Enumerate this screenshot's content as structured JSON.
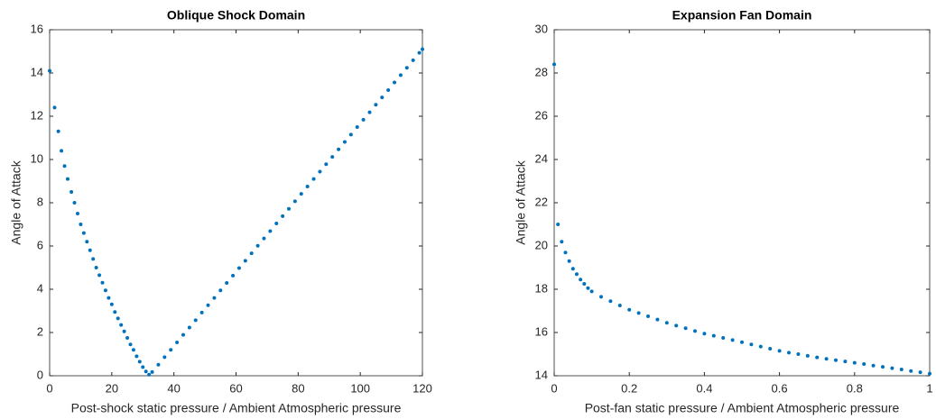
{
  "chart_data": [
    {
      "type": "scatter",
      "title": "Oblique Shock Domain",
      "xlabel": "Post-shock static pressure / Ambient Atmospheric pressure",
      "ylabel": "Angle of Attack",
      "color": "#0072bd",
      "x": [
        0,
        1.6,
        2.8,
        3.8,
        4.8,
        5.8,
        7,
        8,
        9,
        10,
        11,
        12,
        13,
        14,
        15,
        16,
        17,
        18,
        19,
        20,
        21,
        22,
        23,
        24,
        25,
        26,
        27,
        28,
        29,
        30,
        31,
        32,
        33,
        35,
        37,
        39,
        41,
        43,
        45,
        47,
        49,
        51,
        53,
        55,
        57,
        59,
        61,
        63,
        65,
        67,
        69,
        71,
        73,
        75,
        77,
        79,
        81,
        83,
        85,
        87,
        89,
        91,
        93,
        95,
        97,
        99,
        101,
        103,
        105,
        107,
        109,
        111,
        113,
        115,
        117,
        119,
        120
      ],
      "values": [
        14.1,
        12.4,
        11.3,
        10.4,
        9.7,
        9.1,
        8.5,
        8.0,
        7.5,
        7.0,
        6.6,
        6.2,
        5.8,
        5.4,
        5.0,
        4.65,
        4.3,
        3.95,
        3.6,
        3.3,
        2.95,
        2.65,
        2.35,
        2.05,
        1.75,
        1.45,
        1.2,
        0.9,
        0.65,
        0.4,
        0.2,
        0.05,
        0.17,
        0.51,
        0.86,
        1.2,
        1.54,
        1.89,
        2.23,
        2.57,
        2.92,
        3.26,
        3.6,
        3.95,
        4.29,
        4.63,
        4.98,
        5.32,
        5.66,
        6.01,
        6.35,
        6.69,
        7.04,
        7.38,
        7.72,
        8.07,
        8.41,
        8.75,
        9.1,
        9.44,
        9.78,
        10.12,
        10.47,
        10.81,
        11.15,
        11.5,
        11.84,
        12.18,
        12.53,
        12.87,
        13.21,
        13.56,
        13.9,
        14.24,
        14.59,
        14.93,
        15.1
      ],
      "xlim": [
        0,
        120
      ],
      "xticks": [
        0,
        20,
        40,
        60,
        80,
        100,
        120
      ],
      "ylim": [
        0,
        16
      ],
      "yticks": [
        0,
        2,
        4,
        6,
        8,
        10,
        12,
        14,
        16
      ]
    },
    {
      "type": "scatter",
      "title": "Expansion Fan Domain",
      "xlabel": "Post-fan static pressure / Ambient Atmospheric pressure",
      "ylabel": "Angle of Attack",
      "color": "#0072bd",
      "x": [
        0,
        0.01,
        0.02,
        0.03,
        0.04,
        0.05,
        0.06,
        0.07,
        0.08,
        0.09,
        0.1,
        0.125,
        0.15,
        0.175,
        0.2,
        0.225,
        0.25,
        0.275,
        0.3,
        0.325,
        0.35,
        0.375,
        0.4,
        0.425,
        0.45,
        0.475,
        0.5,
        0.525,
        0.55,
        0.575,
        0.6,
        0.625,
        0.65,
        0.675,
        0.7,
        0.725,
        0.75,
        0.775,
        0.8,
        0.825,
        0.85,
        0.875,
        0.9,
        0.925,
        0.95,
        0.975,
        1.0
      ],
      "values": [
        28.4,
        21,
        20.2,
        19.7,
        19.3,
        18.95,
        18.7,
        18.45,
        18.25,
        18.05,
        17.9,
        17.65,
        17.45,
        17.25,
        17.05,
        16.9,
        16.75,
        16.6,
        16.45,
        16.32,
        16.2,
        16.07,
        15.95,
        15.85,
        15.75,
        15.65,
        15.55,
        15.45,
        15.35,
        15.25,
        15.15,
        15.07,
        15.0,
        14.92,
        14.85,
        14.78,
        14.72,
        14.66,
        14.6,
        14.54,
        14.47,
        14.41,
        14.35,
        14.29,
        14.22,
        14.16,
        14.1
      ],
      "xlim": [
        0,
        1
      ],
      "xticks": [
        0,
        0.2,
        0.4,
        0.6,
        0.8,
        1
      ],
      "ylim": [
        14,
        30
      ],
      "yticks": [
        14,
        16,
        18,
        20,
        22,
        24,
        26,
        28,
        30
      ]
    }
  ]
}
